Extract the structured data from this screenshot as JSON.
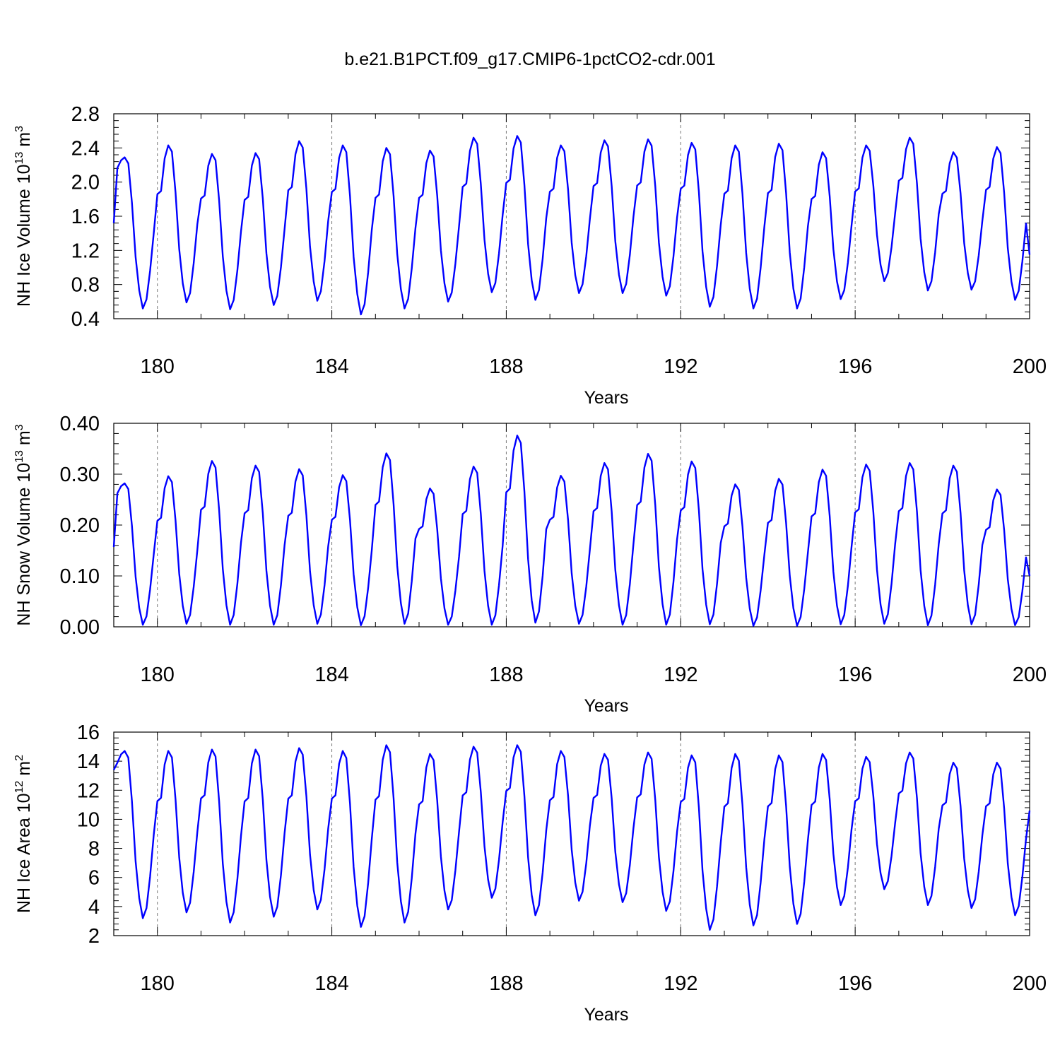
{
  "title": "b.e21.B1PCT.f09_g17.CMIP6-1pctCO2-cdr.001",
  "colors": {
    "series": "#0000ff",
    "grid": "#777777",
    "axis": "#000000"
  },
  "chart_data": [
    {
      "type": "line",
      "ylabel": {
        "main": "NH Ice Volume 10",
        "sup": "13",
        "unit": " m",
        "unitsup": "3"
      },
      "xlabel": "Years",
      "xlim": [
        179,
        200
      ],
      "ylim": [
        0.4,
        2.8
      ],
      "yticks": [
        0.4,
        0.8,
        1.2,
        1.6,
        2.0,
        2.4,
        2.8
      ],
      "ytick_labels": [
        "0.4",
        "0.8",
        "1.2",
        "1.6",
        "2.0",
        "2.4",
        "2.8"
      ],
      "xticks": [
        180,
        184,
        188,
        192,
        196,
        200
      ],
      "xtick_labels": [
        "180",
        "184",
        "188",
        "192",
        "196",
        "200"
      ],
      "grid_x": true,
      "series": [
        {
          "peaks": [
            2.29,
            2.43,
            2.33,
            2.34,
            2.48,
            2.43,
            2.4,
            2.37,
            2.52,
            2.54,
            2.43,
            2.49,
            2.5,
            2.46,
            2.43,
            2.45,
            2.35,
            2.43,
            2.52,
            2.35,
            2.41
          ],
          "troughs": [
            0.52,
            0.59,
            0.51,
            0.56,
            0.61,
            0.45,
            0.52,
            0.6,
            0.71,
            0.62,
            0.7,
            0.7,
            0.67,
            0.54,
            0.52,
            0.52,
            0.63,
            0.84,
            0.73,
            0.74,
            0.62
          ],
          "start": 1.52,
          "end": 1.15
        }
      ]
    },
    {
      "type": "line",
      "ylabel": {
        "main": "NH Snow Volume 10",
        "sup": "13",
        "unit": " m",
        "unitsup": "3"
      },
      "xlabel": "Years",
      "xlim": [
        179,
        200
      ],
      "ylim": [
        0.0,
        0.4
      ],
      "yticks": [
        0.0,
        0.1,
        0.2,
        0.3,
        0.4
      ],
      "ytick_labels": [
        "0.00",
        "0.10",
        "0.20",
        "0.30",
        "0.40"
      ],
      "xticks": [
        180,
        184,
        188,
        192,
        196,
        200
      ],
      "xtick_labels": [
        "180",
        "184",
        "188",
        "192",
        "196",
        "200"
      ],
      "grid_x": true,
      "series": [
        {
          "peaks": [
            0.282,
            0.296,
            0.326,
            0.317,
            0.31,
            0.298,
            0.341,
            0.272,
            0.315,
            0.376,
            0.297,
            0.322,
            0.34,
            0.325,
            0.28,
            0.291,
            0.309,
            0.319,
            0.322,
            0.317,
            0.27
          ],
          "troughs": [
            0.004,
            0.006,
            0.004,
            0.004,
            0.006,
            0.003,
            0.006,
            0.004,
            0.004,
            0.008,
            0.006,
            0.004,
            0.004,
            0.005,
            0.002,
            0.002,
            0.005,
            0.006,
            0.003,
            0.005,
            0.003
          ],
          "start": 0.157,
          "end": 0.1
        }
      ]
    },
    {
      "type": "line",
      "ylabel": {
        "main": "NH Ice Area 10",
        "sup": "12",
        "unit": " m",
        "unitsup": "2"
      },
      "xlabel": "Years",
      "xlim": [
        179,
        200
      ],
      "ylim": [
        2,
        16
      ],
      "yticks": [
        2,
        4,
        6,
        8,
        10,
        12,
        14,
        16
      ],
      "ytick_labels": [
        "2",
        "4",
        "6",
        "8",
        "10",
        "12",
        "14",
        "16"
      ],
      "xticks": [
        180,
        184,
        188,
        192,
        196,
        200
      ],
      "xtick_labels": [
        "180",
        "184",
        "188",
        "192",
        "196",
        "200"
      ],
      "grid_x": true,
      "series": [
        {
          "peaks": [
            14.7,
            14.7,
            14.8,
            14.8,
            14.9,
            14.7,
            15.1,
            14.5,
            15.0,
            15.1,
            14.7,
            14.5,
            14.6,
            14.4,
            14.5,
            14.4,
            14.5,
            14.3,
            14.6,
            13.9,
            13.9
          ],
          "troughs": [
            3.2,
            3.6,
            2.9,
            3.3,
            3.8,
            2.6,
            2.9,
            3.8,
            4.6,
            3.4,
            4.4,
            4.3,
            3.7,
            2.4,
            2.7,
            2.8,
            4.1,
            5.2,
            4.1,
            3.9,
            3.4
          ],
          "start": 13.4,
          "end": 10.6
        }
      ]
    }
  ]
}
